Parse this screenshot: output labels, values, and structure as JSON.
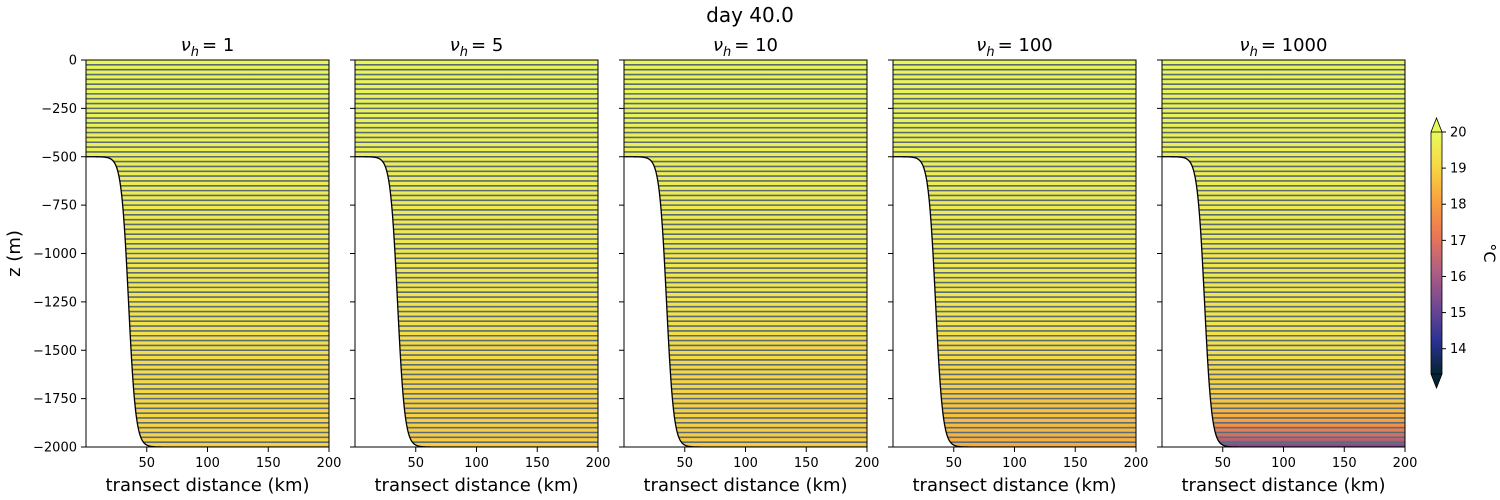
{
  "chart_data": {
    "type": "contour",
    "title": "day 40.0",
    "xlabel": "transect distance (km)",
    "ylabel": "z (m)",
    "xlim": [
      0,
      200
    ],
    "ylim": [
      -2000,
      0
    ],
    "xticks": [
      50,
      100,
      150,
      200
    ],
    "xtick_labels": [
      "50",
      "100",
      "150",
      "200"
    ],
    "yticks": [
      0,
      -250,
      -500,
      -750,
      -1000,
      -1250,
      -1500,
      -1750,
      -2000
    ],
    "ytick_labels": [
      "0",
      "−250",
      "−500",
      "−750",
      "−1000",
      "−1250",
      "−1500",
      "−1750",
      "−2000"
    ],
    "shelf": {
      "shelf_depth": -500,
      "bottom_depth": -2000,
      "slope_center_km": 35,
      "slope_width_km": 6
    },
    "contour_spacing_m": 25,
    "panels": [
      {
        "title_prefix": "ν",
        "title_sub": "h",
        "title_value": "= 1",
        "temperature_profile": [
          [
            0,
            19.9
          ],
          [
            -1200,
            19.4
          ],
          [
            -1500,
            19.2
          ],
          [
            -2000,
            18.9
          ]
        ]
      },
      {
        "title_prefix": "ν",
        "title_sub": "h",
        "title_value": "= 5",
        "temperature_profile": [
          [
            0,
            19.9
          ],
          [
            -1200,
            19.4
          ],
          [
            -1500,
            19.1
          ],
          [
            -2000,
            18.8
          ]
        ]
      },
      {
        "title_prefix": "ν",
        "title_sub": "h",
        "title_value": "= 10",
        "temperature_profile": [
          [
            0,
            19.9
          ],
          [
            -1200,
            19.4
          ],
          [
            -1500,
            19.1
          ],
          [
            -2000,
            18.8
          ]
        ]
      },
      {
        "title_prefix": "ν",
        "title_sub": "h",
        "title_value": "= 100",
        "temperature_profile": [
          [
            0,
            19.9
          ],
          [
            -1300,
            19.4
          ],
          [
            -1600,
            19.0
          ],
          [
            -1900,
            18.5
          ],
          [
            -2000,
            18.2
          ]
        ]
      },
      {
        "title_prefix": "ν",
        "title_sub": "h",
        "title_value": "= 1000",
        "temperature_profile": [
          [
            0,
            19.9
          ],
          [
            -1500,
            19.3
          ],
          [
            -1750,
            18.8
          ],
          [
            -1850,
            18.2
          ],
          [
            -1900,
            17.5
          ],
          [
            -1950,
            16.6
          ],
          [
            -2000,
            15.2
          ]
        ]
      }
    ],
    "colorbar": {
      "label": "°C",
      "vmin": 13.3,
      "vmax": 20,
      "ticks": [
        14,
        15,
        16,
        17,
        18,
        19,
        20
      ],
      "tick_labels": [
        "14",
        "15",
        "16",
        "17",
        "18",
        "19",
        "20"
      ],
      "extend": "both",
      "colormap": "thermal",
      "colormap_stops": [
        "#042333",
        "#2c3395",
        "#744992",
        "#b15f82",
        "#eb7655",
        "#f8a13e",
        "#f6d844",
        "#e8fa5b"
      ]
    },
    "contour_color": "#5a6b75"
  }
}
